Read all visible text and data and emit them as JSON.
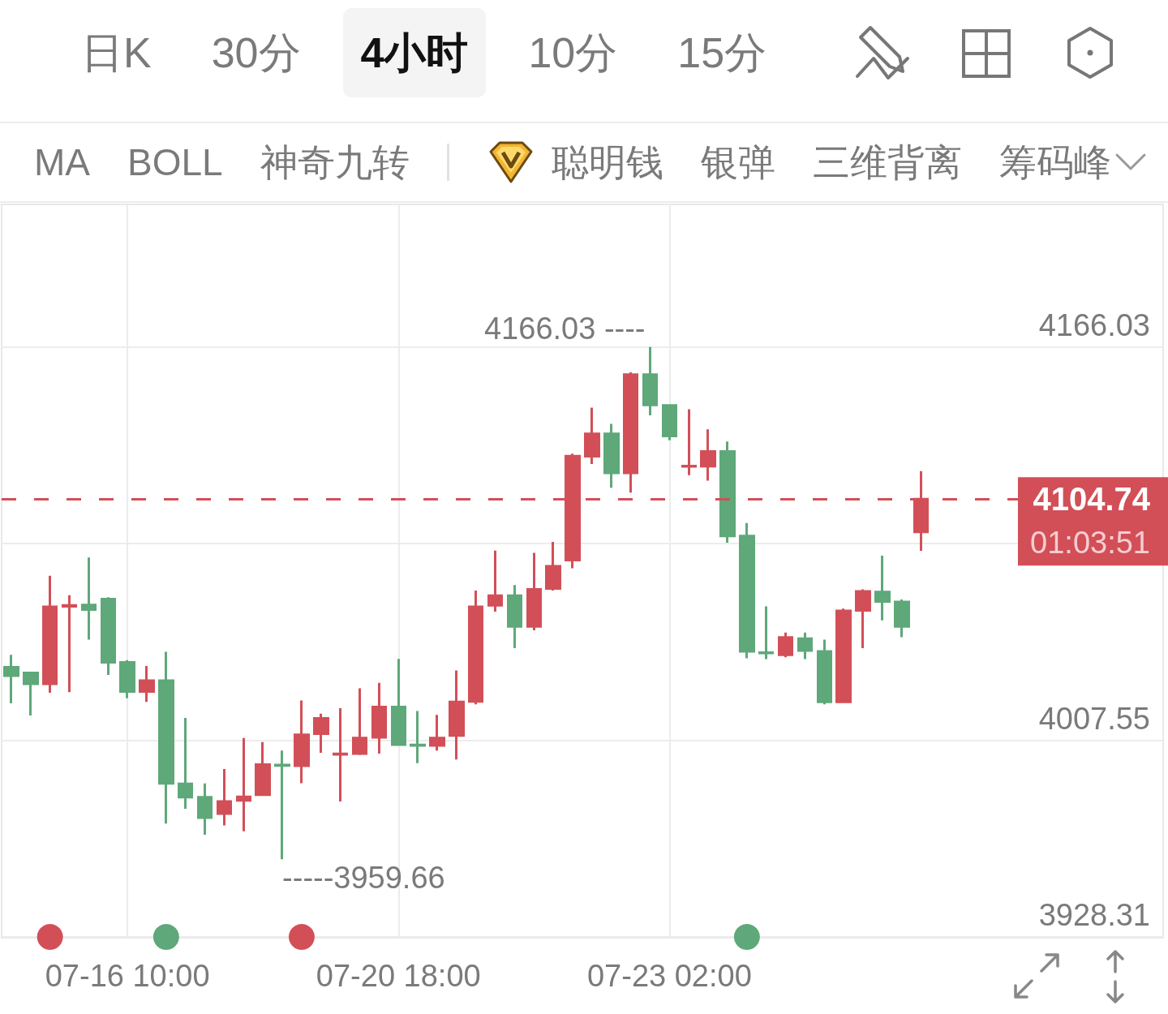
{
  "chart_data": [
    {
      "type": "other",
      "annotations": [
        "日K",
        "30分",
        "4小时",
        "10分",
        "15分"
      ]
    },
    {
      "type": "other",
      "annotations": [
        "MA",
        "BOLL",
        "神奇九转",
        "聪明钱",
        "银弹",
        "三维背离",
        "筹码峰"
      ]
    },
    {
      "type": "candlestick",
      "categories": [
        null,
        null,
        null,
        null,
        null,
        null,
        "07-16 10:00",
        null,
        null,
        null,
        null,
        null,
        null,
        null,
        null,
        null,
        null,
        null,
        null,
        null,
        "07-20 18:00",
        null,
        null,
        null,
        null,
        null,
        null,
        null,
        null,
        null,
        null,
        null,
        null,
        null,
        "07-23 02:00",
        null,
        null,
        null,
        null,
        null,
        null,
        null,
        null,
        null,
        null,
        null,
        null,
        null
      ],
      "ohlc": [
        [
          4037.0,
          4042.0,
          4022.5,
          4033.6
        ],
        [
          4034.7,
          4035.2,
          4017.6,
          4030.3
        ],
        [
          4030.3,
          4073.9,
          4026.7,
          4061.4
        ],
        [
          4061.5,
          4066.0,
          4027.0,
          4061.9
        ],
        [
          4062.1,
          4081.2,
          4048.1,
          4060.2
        ],
        [
          4064.5,
          4065.2,
          4033.9,
          4039.0
        ],
        [
          4039.0,
          4039.9,
          4024.5,
          4027.2
        ],
        [
          4027.2,
          4037.5,
          4023.0,
          4031.6
        ],
        [
          4031.6,
          4043.2,
          3974.0,
          3990.2
        ],
        [
          3990.0,
          4016.6,
          3980.0,
          3984.6
        ],
        [
          3984.6,
          3990.2,
          3969.5,
          3976.4
        ],
        [
          3978.0,
          3996.0,
          3973.3,
          3982.9
        ],
        [
          3983.3,
          4008.5,
          3970.9,
          3984.8
        ],
        [
          3985.6,
          4006.9,
          3985.6,
          3997.8
        ],
        [
          3997.6,
          4003.4,
          3959.66,
          3997.4
        ],
        [
          3997.3,
          4023.6,
          3990.3,
          4009.8
        ],
        [
          4010.2,
          4018.3,
          4002.5,
          4016.4
        ],
        [
          4001.9,
          4020.5,
          3982.9,
          4002.1
        ],
        [
          4002.2,
          4028.5,
          4001.6,
          4008.5
        ],
        [
          4008.7,
          4030.7,
          4002.2,
          4021.0
        ],
        [
          4021.0,
          4040.4,
          4005.8,
          4005.8
        ],
        [
          4005.7,
          4019.4,
          3998.4,
          4005.5
        ],
        [
          4005.5,
          4017.8,
          4003.4,
          4008.5
        ],
        [
          4009.5,
          4035.7,
          3999.8,
          4023.0
        ],
        [
          4023.2,
          4067.9,
          4022.1,
          4061.4
        ],
        [
          4061.9,
          4084.0,
          4059.4,
          4065.9
        ],
        [
          4065.9,
          4070.1,
          4044.7,
          4053.4
        ],
        [
          4053.4,
          4083.1,
          4051.9,
          4068.4
        ],
        [
          4068.7,
          4087.5,
          4067.9,
          4077.7
        ],
        [
          4080.2,
          4123.1,
          4076.9,
          4122.1
        ],
        [
          4122.0,
          4141.6,
          4118.9,
          4131.1
        ],
        [
          4131.1,
          4135.1,
          4109.3,
          4115.3
        ],
        [
          4115.3,
          4155.8,
          4107.4,
          4154.9
        ],
        [
          4154.9,
          4166.03,
          4138.5,
          4142.7
        ],
        [
          4142.5,
          4142.7,
          4128.5,
          4130.2
        ],
        [
          4117.9,
          4141.0,
          4114.4,
          4118.1
        ],
        [
          4118.0,
          4132.9,
          4112.2,
          4124.0
        ],
        [
          4124.0,
          4128.0,
          4087.2,
          4089.9
        ],
        [
          4089.9,
          4095.1,
          4040.6,
          4043.4
        ],
        [
          4042.9,
          4061.5,
          4040.3,
          4042.7
        ],
        [
          4042.0,
          4051.0,
          4041.0,
          4049.0
        ],
        [
          4048.5,
          4051.0,
          4040.3,
          4043.7
        ],
        [
          4043.4,
          4048.1,
          4022.1,
          4023.0
        ],
        [
          4023.0,
          4060.6,
          4023.0,
          4059.7
        ],
        [
          4059.9,
          4068.4,
          4044.7,
          4067.6
        ],
        [
          4067.3,
          4082.0,
          4055.9,
          4063.5
        ],
        [
          4063.3,
          4064.3,
          4049.1,
          4053.4
        ],
        [
          4091.5,
          4116.0,
          4083.9,
          4104.74
        ]
      ],
      "colors": [
        "#5ea879",
        "#5ea879",
        "#d24f58",
        "#d24f58",
        "#5ea879",
        "#5ea879",
        "#5ea879",
        "#d24f58",
        "#5ea879",
        "#5ea879",
        "#5ea879",
        "#d24f58",
        "#d24f58",
        "#d24f58",
        "#5ea879",
        "#d24f58",
        "#d24f58",
        "#d24f58",
        "#d24f58",
        "#d24f58",
        "#5ea879",
        "#5ea879",
        "#d24f58",
        "#d24f58",
        "#d24f58",
        "#d24f58",
        "#5ea879",
        "#d24f58",
        "#d24f58",
        "#d24f58",
        "#d24f58",
        "#5ea879",
        "#d24f58",
        "#5ea879",
        "#5ea879",
        "#d24f58",
        "#d24f58",
        "#5ea879",
        "#5ea879",
        "#5ea879",
        "#d24f58",
        "#5ea879",
        "#5ea879",
        "#d24f58",
        "#d24f58",
        "#5ea879",
        "#5ea879",
        "#d24f58"
      ],
      "series": [
        {
          "type": "scatter",
          "values": [
            null,
            null,
            3928.3,
            null,
            null,
            null,
            null,
            null,
            3928.3,
            null,
            null,
            null,
            null,
            null,
            null,
            3928.3,
            null,
            null,
            null,
            null,
            null,
            null,
            null,
            null,
            null,
            null,
            null,
            null,
            null,
            null,
            null,
            null,
            null,
            null,
            null,
            null,
            null,
            null,
            3928.3,
            null,
            null,
            null,
            null,
            null,
            null,
            null,
            null,
            null
          ],
          "colors": [
            null,
            null,
            "#d24f58",
            null,
            null,
            null,
            null,
            null,
            "#5ea879",
            null,
            null,
            null,
            null,
            null,
            null,
            "#d24f58",
            null,
            null,
            null,
            null,
            null,
            null,
            null,
            null,
            null,
            null,
            null,
            null,
            null,
            null,
            null,
            null,
            null,
            null,
            null,
            null,
            null,
            null,
            "#5ea879",
            null,
            null,
            null,
            null,
            null,
            null,
            null,
            null,
            null
          ]
        }
      ],
      "ylim": [
        3928,
        4223.5
      ],
      "yticks": [
        4166.03,
        {
          "value": 4086.79,
          "label": null
        },
        4007.55,
        3928.31
      ],
      "grid": true,
      "ref_lines": [
        {
          "axis": "y",
          "value": 4104.74,
          "label": "4104.74",
          "color": "#d24f58",
          "line_style": "dashed"
        }
      ],
      "annotations": [
        "4166.03 ----",
        "-----3959.66",
        "01:03:51"
      ]
    }
  ]
}
